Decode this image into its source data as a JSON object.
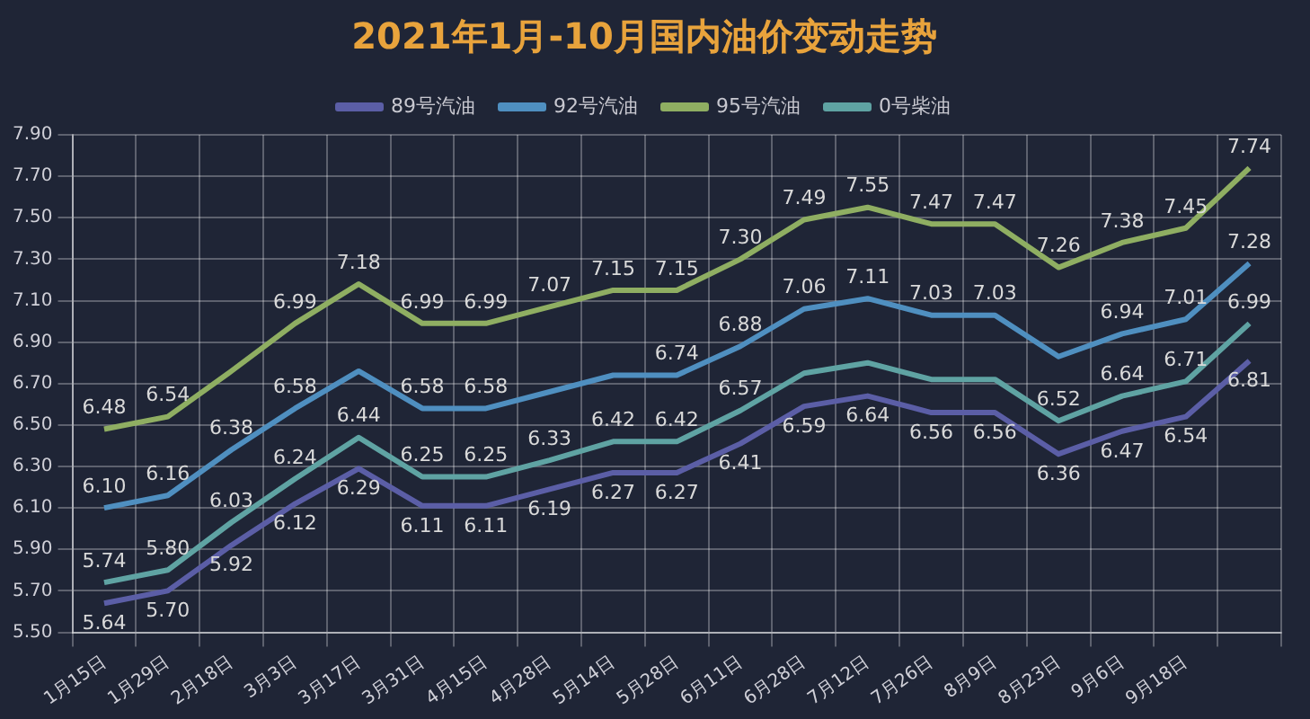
{
  "chart_data": {
    "type": "line",
    "title": "2021年1月-10月国内油价变动走势",
    "categories": [
      "1月15日",
      "1月29日",
      "2月18日",
      "3月3日",
      "3月17日",
      "3月31日",
      "4月15日",
      "4月28日",
      "5月14日",
      "5月28日",
      "6月11日",
      "6月28日",
      "7月12日",
      "7月26日",
      "8月9日",
      "8月23日",
      "9月6日",
      "9月18日",
      null
    ],
    "series": [
      {
        "name": "89号汽油",
        "color": "#5b5ea6",
        "values": [
          5.64,
          5.7,
          5.92,
          6.12,
          6.29,
          6.11,
          6.11,
          6.19,
          6.27,
          6.27,
          6.41,
          6.59,
          6.64,
          6.56,
          6.56,
          6.36,
          6.47,
          6.54,
          6.81
        ],
        "value_labels": [
          "5.64",
          "5.70",
          "5.92",
          "6.12",
          "6.29",
          "6.11",
          "6.11",
          "6.19",
          "6.27",
          "6.27",
          "6.41",
          "6.59",
          "6.64",
          "6.56",
          "6.56",
          "6.36",
          "6.47",
          "6.54",
          "6.81"
        ]
      },
      {
        "name": "92号汽油",
        "color": "#4f8fc0",
        "values": [
          6.1,
          6.16,
          6.38,
          6.58,
          6.76,
          6.58,
          6.58,
          6.66,
          6.74,
          6.74,
          6.88,
          7.06,
          7.11,
          7.03,
          7.03,
          6.83,
          6.94,
          7.01,
          7.28
        ],
        "value_labels": [
          "6.10",
          "6.16",
          "6.38",
          "6.58",
          null,
          "6.58",
          "6.58",
          null,
          null,
          "6.74",
          "6.88",
          "7.06",
          "7.11",
          "7.03",
          "7.03",
          null,
          "6.94",
          "7.01",
          "7.28"
        ]
      },
      {
        "name": "95号汽油",
        "color": "#8fae62",
        "values": [
          6.48,
          6.54,
          6.76,
          6.99,
          7.18,
          6.99,
          6.99,
          7.07,
          7.15,
          7.15,
          7.3,
          7.49,
          7.55,
          7.47,
          7.47,
          7.26,
          7.38,
          7.45,
          7.74
        ],
        "value_labels": [
          "6.48",
          "6.54",
          null,
          "6.99",
          "7.18",
          "6.99",
          "6.99",
          "7.07",
          "7.15",
          "7.15",
          "7.30",
          "7.49",
          "7.55",
          "7.47",
          "7.47",
          "7.26",
          "7.38",
          "7.45",
          "7.74"
        ]
      },
      {
        "name": "0号柴油",
        "color": "#5fa3a3",
        "values": [
          5.74,
          5.8,
          6.03,
          6.24,
          6.44,
          6.25,
          6.25,
          6.33,
          6.42,
          6.42,
          6.57,
          6.75,
          6.8,
          6.72,
          6.72,
          6.52,
          6.64,
          6.71,
          6.99
        ],
        "value_labels": [
          "5.74",
          "5.80",
          "6.03",
          "6.24",
          "6.44",
          "6.25",
          "6.25",
          "6.33",
          "6.42",
          "6.42",
          "6.57",
          null,
          null,
          null,
          null,
          "6.52",
          "6.64",
          "6.71",
          "6.99"
        ]
      }
    ],
    "ylim": [
      5.5,
      7.9
    ],
    "yticks": [
      {
        "value": 5.5,
        "label": "5.50"
      },
      {
        "value": 5.7,
        "label": "5.70"
      },
      {
        "value": 5.9,
        "label": "5.90"
      },
      {
        "value": 6.1,
        "label": "6.10"
      },
      {
        "value": 6.3,
        "label": "6.30"
      },
      {
        "value": 6.5,
        "label": "6.50"
      },
      {
        "value": 6.7,
        "label": "6.70"
      },
      {
        "value": 6.9,
        "label": "6.90"
      },
      {
        "value": 7.1,
        "label": "7.10"
      },
      {
        "value": 7.3,
        "label": "7.30"
      },
      {
        "value": 7.5,
        "label": "7.50"
      },
      {
        "value": 7.7,
        "label": "7.70"
      },
      {
        "value": 7.9,
        "label": "7.90"
      }
    ],
    "grid": true,
    "legend": "top",
    "marker": "none",
    "line_style": "solid"
  }
}
